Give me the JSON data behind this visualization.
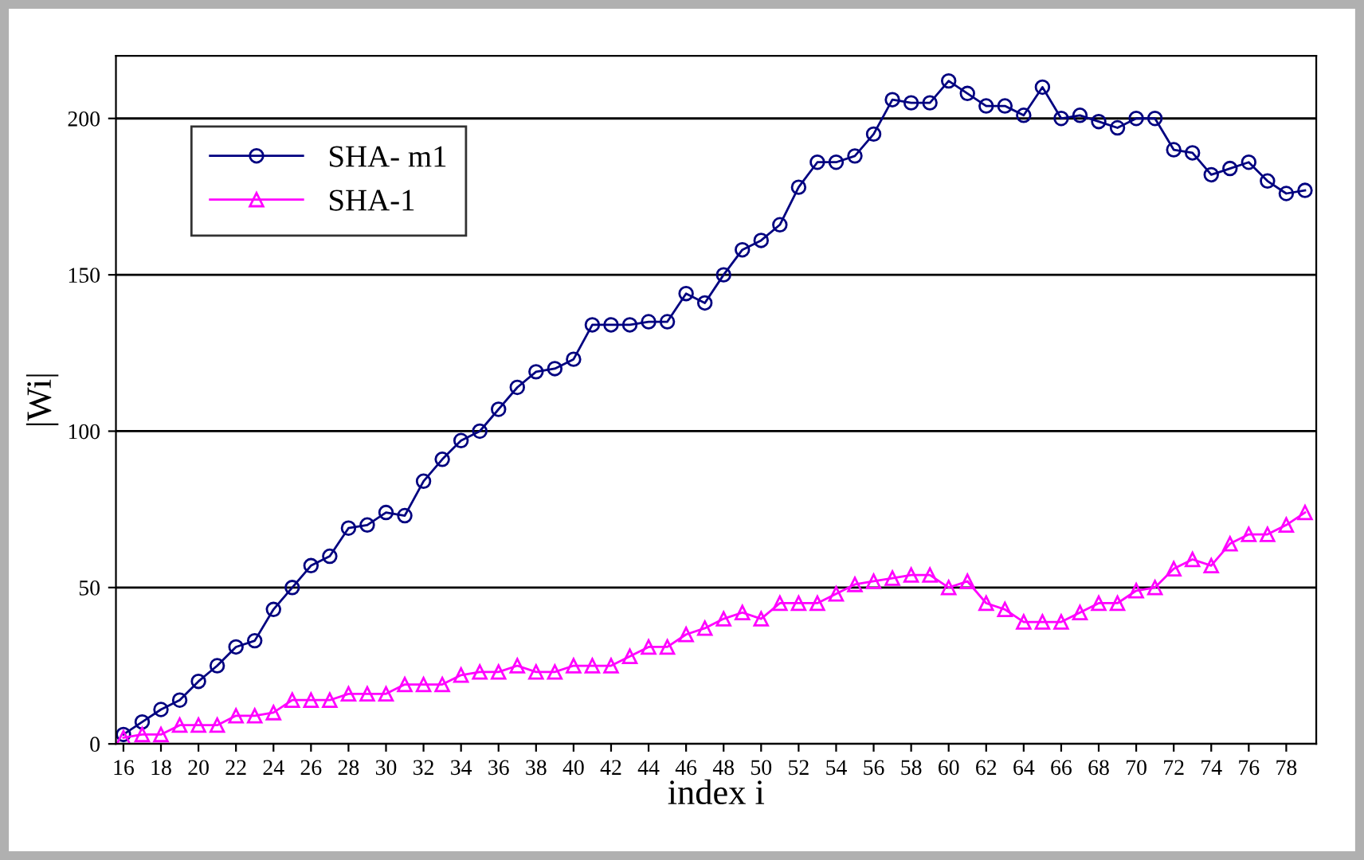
{
  "chart_data": {
    "type": "line",
    "xlabel": "index i",
    "ylabel": "|Wi|",
    "x": [
      16,
      17,
      18,
      19,
      20,
      21,
      22,
      23,
      24,
      25,
      26,
      27,
      28,
      29,
      30,
      31,
      32,
      33,
      34,
      35,
      36,
      37,
      38,
      39,
      40,
      41,
      42,
      43,
      44,
      45,
      46,
      47,
      48,
      49,
      50,
      51,
      52,
      53,
      54,
      55,
      56,
      57,
      58,
      59,
      60,
      61,
      62,
      63,
      64,
      65,
      66,
      67,
      68,
      69,
      70,
      71,
      72,
      73,
      74,
      75,
      76,
      77,
      78,
      79
    ],
    "series": [
      {
        "name": "SHA- m1",
        "color": "#000080",
        "marker": "circle",
        "values": [
          3,
          7,
          11,
          14,
          20,
          25,
          31,
          33,
          43,
          50,
          57,
          60,
          69,
          70,
          74,
          73,
          84,
          91,
          97,
          100,
          107,
          114,
          119,
          120,
          123,
          134,
          134,
          134,
          135,
          135,
          144,
          141,
          150,
          158,
          161,
          166,
          178,
          186,
          186,
          188,
          195,
          206,
          205,
          205,
          212,
          208,
          204,
          204,
          201,
          210,
          200,
          201,
          199,
          197,
          200,
          200,
          190,
          189,
          182,
          184,
          186,
          180,
          176,
          177
        ]
      },
      {
        "name": "SHA-1",
        "color": "#ff00ff",
        "marker": "triangle",
        "values": [
          2,
          3,
          3,
          6,
          6,
          6,
          9,
          9,
          10,
          14,
          14,
          14,
          16,
          16,
          16,
          19,
          19,
          19,
          22,
          23,
          23,
          25,
          23,
          23,
          25,
          25,
          25,
          28,
          31,
          31,
          35,
          37,
          40,
          42,
          40,
          45,
          45,
          45,
          48,
          51,
          52,
          53,
          54,
          54,
          50,
          52,
          45,
          43,
          39,
          39,
          39,
          42,
          45,
          45,
          49,
          50,
          56,
          59,
          57,
          64,
          67,
          67,
          70,
          74
        ]
      }
    ],
    "xlim": [
      15.6,
      79.6
    ],
    "ylim": [
      0,
      220
    ],
    "xticks": [
      16,
      18,
      20,
      22,
      24,
      26,
      28,
      30,
      32,
      34,
      36,
      38,
      40,
      42,
      44,
      46,
      48,
      50,
      52,
      54,
      56,
      58,
      60,
      62,
      64,
      66,
      68,
      70,
      72,
      74,
      76,
      78
    ],
    "yticks": [
      0,
      50,
      100,
      150,
      200
    ],
    "grid": "y",
    "legend": "top left",
    "line_style": "solid"
  }
}
